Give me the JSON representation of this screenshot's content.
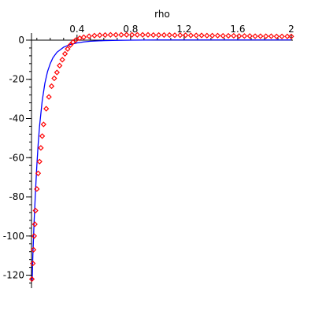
{
  "chart_data": {
    "type": "scatter",
    "title": "",
    "xlabel": "rho",
    "ylabel": "",
    "xlim": [
      0.06,
      2.0
    ],
    "ylim": [
      -125,
      2
    ],
    "x_ticks": [
      {
        "value": 0.4,
        "label": "0.4"
      },
      {
        "value": 0.8,
        "label": "0.8"
      },
      {
        "value": 1.2,
        "label": "1.2"
      },
      {
        "value": 1.6,
        "label": "1.6"
      },
      {
        "value": 2.0,
        "label": "2"
      }
    ],
    "y_ticks": [
      {
        "value": 0,
        "label": "0"
      },
      {
        "value": -20,
        "label": "-20"
      },
      {
        "value": -40,
        "label": "-40"
      },
      {
        "value": -60,
        "label": "-60"
      },
      {
        "value": -80,
        "label": "-80"
      },
      {
        "value": -100,
        "label": "-100"
      },
      {
        "value": -120,
        "label": "-120"
      }
    ],
    "grid": false,
    "legend": "none",
    "series": [
      {
        "style": "line",
        "color": "#0000ff",
        "points": [
          [
            0.065,
            -123
          ],
          [
            0.07,
            -110
          ],
          [
            0.08,
            -92
          ],
          [
            0.09,
            -77
          ],
          [
            0.1,
            -64
          ],
          [
            0.11,
            -53
          ],
          [
            0.12,
            -44
          ],
          [
            0.14,
            -31
          ],
          [
            0.16,
            -22
          ],
          [
            0.18,
            -16
          ],
          [
            0.2,
            -12
          ],
          [
            0.22,
            -9
          ],
          [
            0.25,
            -6.2
          ],
          [
            0.3,
            -3.6
          ],
          [
            0.35,
            -2.2
          ],
          [
            0.4,
            -1.4
          ],
          [
            0.45,
            -0.9
          ],
          [
            0.5,
            -0.55
          ],
          [
            0.6,
            -0.25
          ],
          [
            0.7,
            -0.1
          ],
          [
            0.8,
            0.0
          ],
          [
            0.9,
            0.05
          ],
          [
            1.0,
            0.08
          ],
          [
            1.2,
            0.1
          ],
          [
            1.6,
            0.1
          ],
          [
            2.0,
            0.1
          ]
        ]
      },
      {
        "style": "diamond-markers",
        "color": "#ff0000",
        "points": [
          [
            0.063,
            -122
          ],
          [
            0.07,
            -114
          ],
          [
            0.075,
            -107
          ],
          [
            0.08,
            -100
          ],
          [
            0.085,
            -94
          ],
          [
            0.09,
            -87
          ],
          [
            0.1,
            -76
          ],
          [
            0.11,
            -68
          ],
          [
            0.12,
            -62
          ],
          [
            0.13,
            -55
          ],
          [
            0.14,
            -49
          ],
          [
            0.15,
            -43
          ],
          [
            0.17,
            -35
          ],
          [
            0.19,
            -29
          ],
          [
            0.21,
            -23.5
          ],
          [
            0.23,
            -19.5
          ],
          [
            0.25,
            -16.5
          ],
          [
            0.27,
            -13
          ],
          [
            0.29,
            -10
          ],
          [
            0.31,
            -7
          ],
          [
            0.33,
            -4.5
          ],
          [
            0.35,
            -2.5
          ],
          [
            0.37,
            -1
          ],
          [
            0.39,
            0
          ],
          [
            0.42,
            1
          ],
          [
            0.45,
            1.5
          ],
          [
            0.49,
            2
          ],
          [
            0.53,
            2.3
          ],
          [
            0.57,
            2.5
          ],
          [
            0.61,
            2.6
          ],
          [
            0.65,
            2.7
          ],
          [
            0.69,
            2.7
          ],
          [
            0.73,
            2.7
          ],
          [
            0.77,
            2.7
          ],
          [
            0.81,
            2.7
          ],
          [
            0.85,
            2.7
          ],
          [
            0.89,
            2.7
          ],
          [
            0.93,
            2.7
          ],
          [
            0.97,
            2.6
          ],
          [
            1.01,
            2.6
          ],
          [
            1.05,
            2.6
          ],
          [
            1.09,
            2.6
          ],
          [
            1.13,
            2.5
          ],
          [
            1.17,
            2.5
          ],
          [
            1.21,
            2.5
          ],
          [
            1.25,
            2.4
          ],
          [
            1.29,
            2.4
          ],
          [
            1.33,
            2.4
          ],
          [
            1.37,
            2.3
          ],
          [
            1.41,
            2.3
          ],
          [
            1.45,
            2.3
          ],
          [
            1.49,
            2.2
          ],
          [
            1.53,
            2.2
          ],
          [
            1.57,
            2.2
          ],
          [
            1.61,
            2.1
          ],
          [
            1.65,
            2.1
          ],
          [
            1.69,
            2.1
          ],
          [
            1.73,
            2.0
          ],
          [
            1.77,
            2.0
          ],
          [
            1.81,
            2.0
          ],
          [
            1.85,
            2.0
          ],
          [
            1.89,
            1.9
          ],
          [
            1.93,
            1.9
          ],
          [
            1.97,
            1.9
          ],
          [
            2.0,
            1.9
          ]
        ]
      }
    ]
  }
}
